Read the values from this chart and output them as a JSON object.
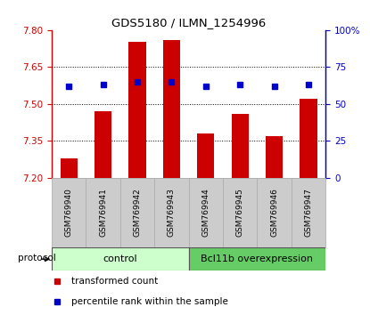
{
  "title": "GDS5180 / ILMN_1254996",
  "samples": [
    "GSM769940",
    "GSM769941",
    "GSM769942",
    "GSM769943",
    "GSM769944",
    "GSM769945",
    "GSM769946",
    "GSM769947"
  ],
  "red_values": [
    7.28,
    7.47,
    7.75,
    7.76,
    7.38,
    7.46,
    7.37,
    7.52
  ],
  "blue_values": [
    62,
    63,
    65,
    65,
    62,
    63,
    62,
    63
  ],
  "ylim_left": [
    7.2,
    7.8
  ],
  "ylim_right": [
    0,
    100
  ],
  "yticks_left": [
    7.2,
    7.35,
    7.5,
    7.65,
    7.8
  ],
  "yticks_right": [
    0,
    25,
    50,
    75,
    100
  ],
  "ytick_labels_right": [
    "0",
    "25",
    "50",
    "75",
    "100%"
  ],
  "red_color": "#cc0000",
  "blue_color": "#0000cc",
  "bar_width": 0.5,
  "n_control": 4,
  "n_overexpression": 4,
  "control_label": "control",
  "overexpression_label": "Bcl11b overexpression",
  "protocol_label": "protocol",
  "legend_red": "transformed count",
  "legend_blue": "percentile rank within the sample",
  "control_color": "#ccffcc",
  "overexpression_color": "#66cc66",
  "tick_label_bg": "#cccccc",
  "base_value": 7.2,
  "grid_yticks": [
    7.35,
    7.5,
    7.65
  ]
}
